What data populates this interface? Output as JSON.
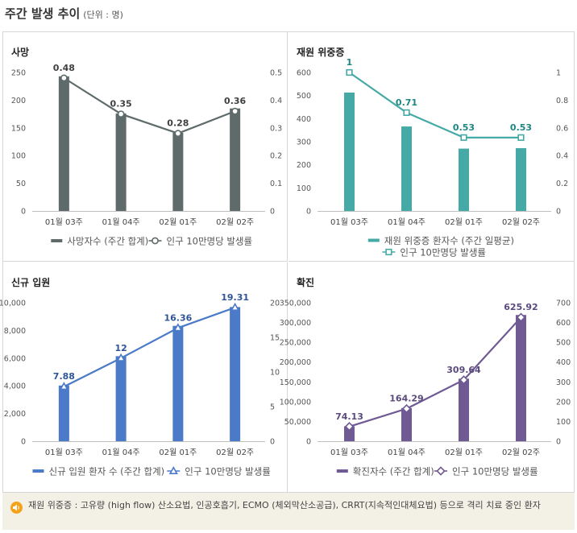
{
  "header": {
    "title": "주간 발생 추이",
    "unit": "(단위 : 명)"
  },
  "chart_data": [
    {
      "type": "bar",
      "title": "사망",
      "categories": [
        "01월 03주",
        "01월 04주",
        "02월 01주",
        "02월 02주"
      ],
      "bar": {
        "name": "사망자수 (주간 합계)",
        "values": [
          243,
          176,
          141,
          185
        ],
        "color": "#5f6a6a"
      },
      "line": {
        "name": "인구 10만명당 발생률",
        "values": [
          0.48,
          0.35,
          0.28,
          0.36
        ],
        "labels": [
          "0.48",
          "0.35",
          "0.28",
          "0.36"
        ],
        "color": "#5f6a6a",
        "marker": "circle",
        "label_color": "#404040"
      },
      "y_left": {
        "min": 0,
        "max": 250,
        "ticks": [
          "0",
          "50",
          "100",
          "150",
          "200",
          "250"
        ]
      },
      "y_right": {
        "min": 0,
        "max": 0.5,
        "ticks": [
          "0",
          "0.1",
          "0.2",
          "0.3",
          "0.4",
          "0.5"
        ]
      },
      "legend_two_rows": false
    },
    {
      "type": "bar",
      "title": "재원 위중증",
      "categories": [
        "01월 03주",
        "01월 04주",
        "02월 01주",
        "02월 02주"
      ],
      "bar": {
        "name": "재원 위중증 환자수 (주간 일평균)",
        "values": [
          513,
          366,
          270,
          272
        ],
        "color": "#45aaa6"
      },
      "line": {
        "name": "인구 10만명당 발생률",
        "values": [
          1.0,
          0.71,
          0.53,
          0.53
        ],
        "labels": [
          "1",
          "0.71",
          "0.53",
          "0.53"
        ],
        "color": "#45aaa6",
        "marker": "square",
        "label_color": "#1e8682"
      },
      "y_left": {
        "min": 0,
        "max": 600,
        "ticks": [
          "0",
          "100",
          "200",
          "300",
          "400",
          "500",
          "600"
        ]
      },
      "y_right": {
        "min": 0,
        "max": 1,
        "ticks": [
          "0",
          "0.2",
          "0.4",
          "0.6",
          "0.8",
          "1"
        ]
      },
      "legend_two_rows": true
    },
    {
      "type": "bar",
      "title": "신규 입원",
      "categories": [
        "01월 03주",
        "01월 04주",
        "02월 01주",
        "02월 02주"
      ],
      "bar": {
        "name": "신규 입원 환자 수 (주간 합계)",
        "values": [
          4020,
          6140,
          8330,
          9690
        ],
        "color": "#4a7ac8"
      },
      "line": {
        "name": "인구 10만명당 발생률",
        "values": [
          7.88,
          12,
          16.36,
          19.31
        ],
        "labels": [
          "7.88",
          "12",
          "16.36",
          "19.31"
        ],
        "color": "#4a7ac8",
        "marker": "triangle",
        "label_color": "#2f5597"
      },
      "y_left": {
        "min": 0,
        "max": 10000,
        "ticks": [
          "0",
          "2,000",
          "4,000",
          "6,000",
          "8,000",
          "10,000"
        ]
      },
      "y_right": {
        "min": 0,
        "max": 20,
        "ticks": [
          "0",
          "5",
          "10",
          "15",
          "20"
        ]
      },
      "legend_two_rows": false
    },
    {
      "type": "bar",
      "title": "확진",
      "categories": [
        "01월 03주",
        "01월 04주",
        "02월 01주",
        "02월 02주"
      ],
      "bar": {
        "name": "확진자수 (주간 합계)",
        "values": [
          37800,
          83800,
          158000,
          319000
        ],
        "color": "#6f5a93"
      },
      "line": {
        "name": "인구 10만명당 발생률",
        "values": [
          74.13,
          164.29,
          309.64,
          625.92
        ],
        "labels": [
          "74.13",
          "164.29",
          "309.64",
          "625.92"
        ],
        "color": "#6f5a93",
        "marker": "diamond",
        "label_color": "#5a4a7e"
      },
      "y_left": {
        "min": 0,
        "max": 350000,
        "ticks": [
          "0",
          "50,000",
          "100,000",
          "150,000",
          "200,000",
          "250,000",
          "300,000",
          "350,000"
        ]
      },
      "y_right": {
        "min": 0,
        "max": 700,
        "ticks": [
          "0",
          "100",
          "200",
          "300",
          "400",
          "500",
          "600",
          "700"
        ]
      },
      "legend_two_rows": false
    }
  ],
  "footnote": {
    "text": "재원 위중증 : 고유량 (high flow) 산소요법, 인공호흡기, ECMO (체외막산소공급), CRRT(지속적인대체요법) 등으로 격리 치료 중인 환자",
    "icon": "speaker-icon",
    "icon_color": "#f5a21b"
  }
}
